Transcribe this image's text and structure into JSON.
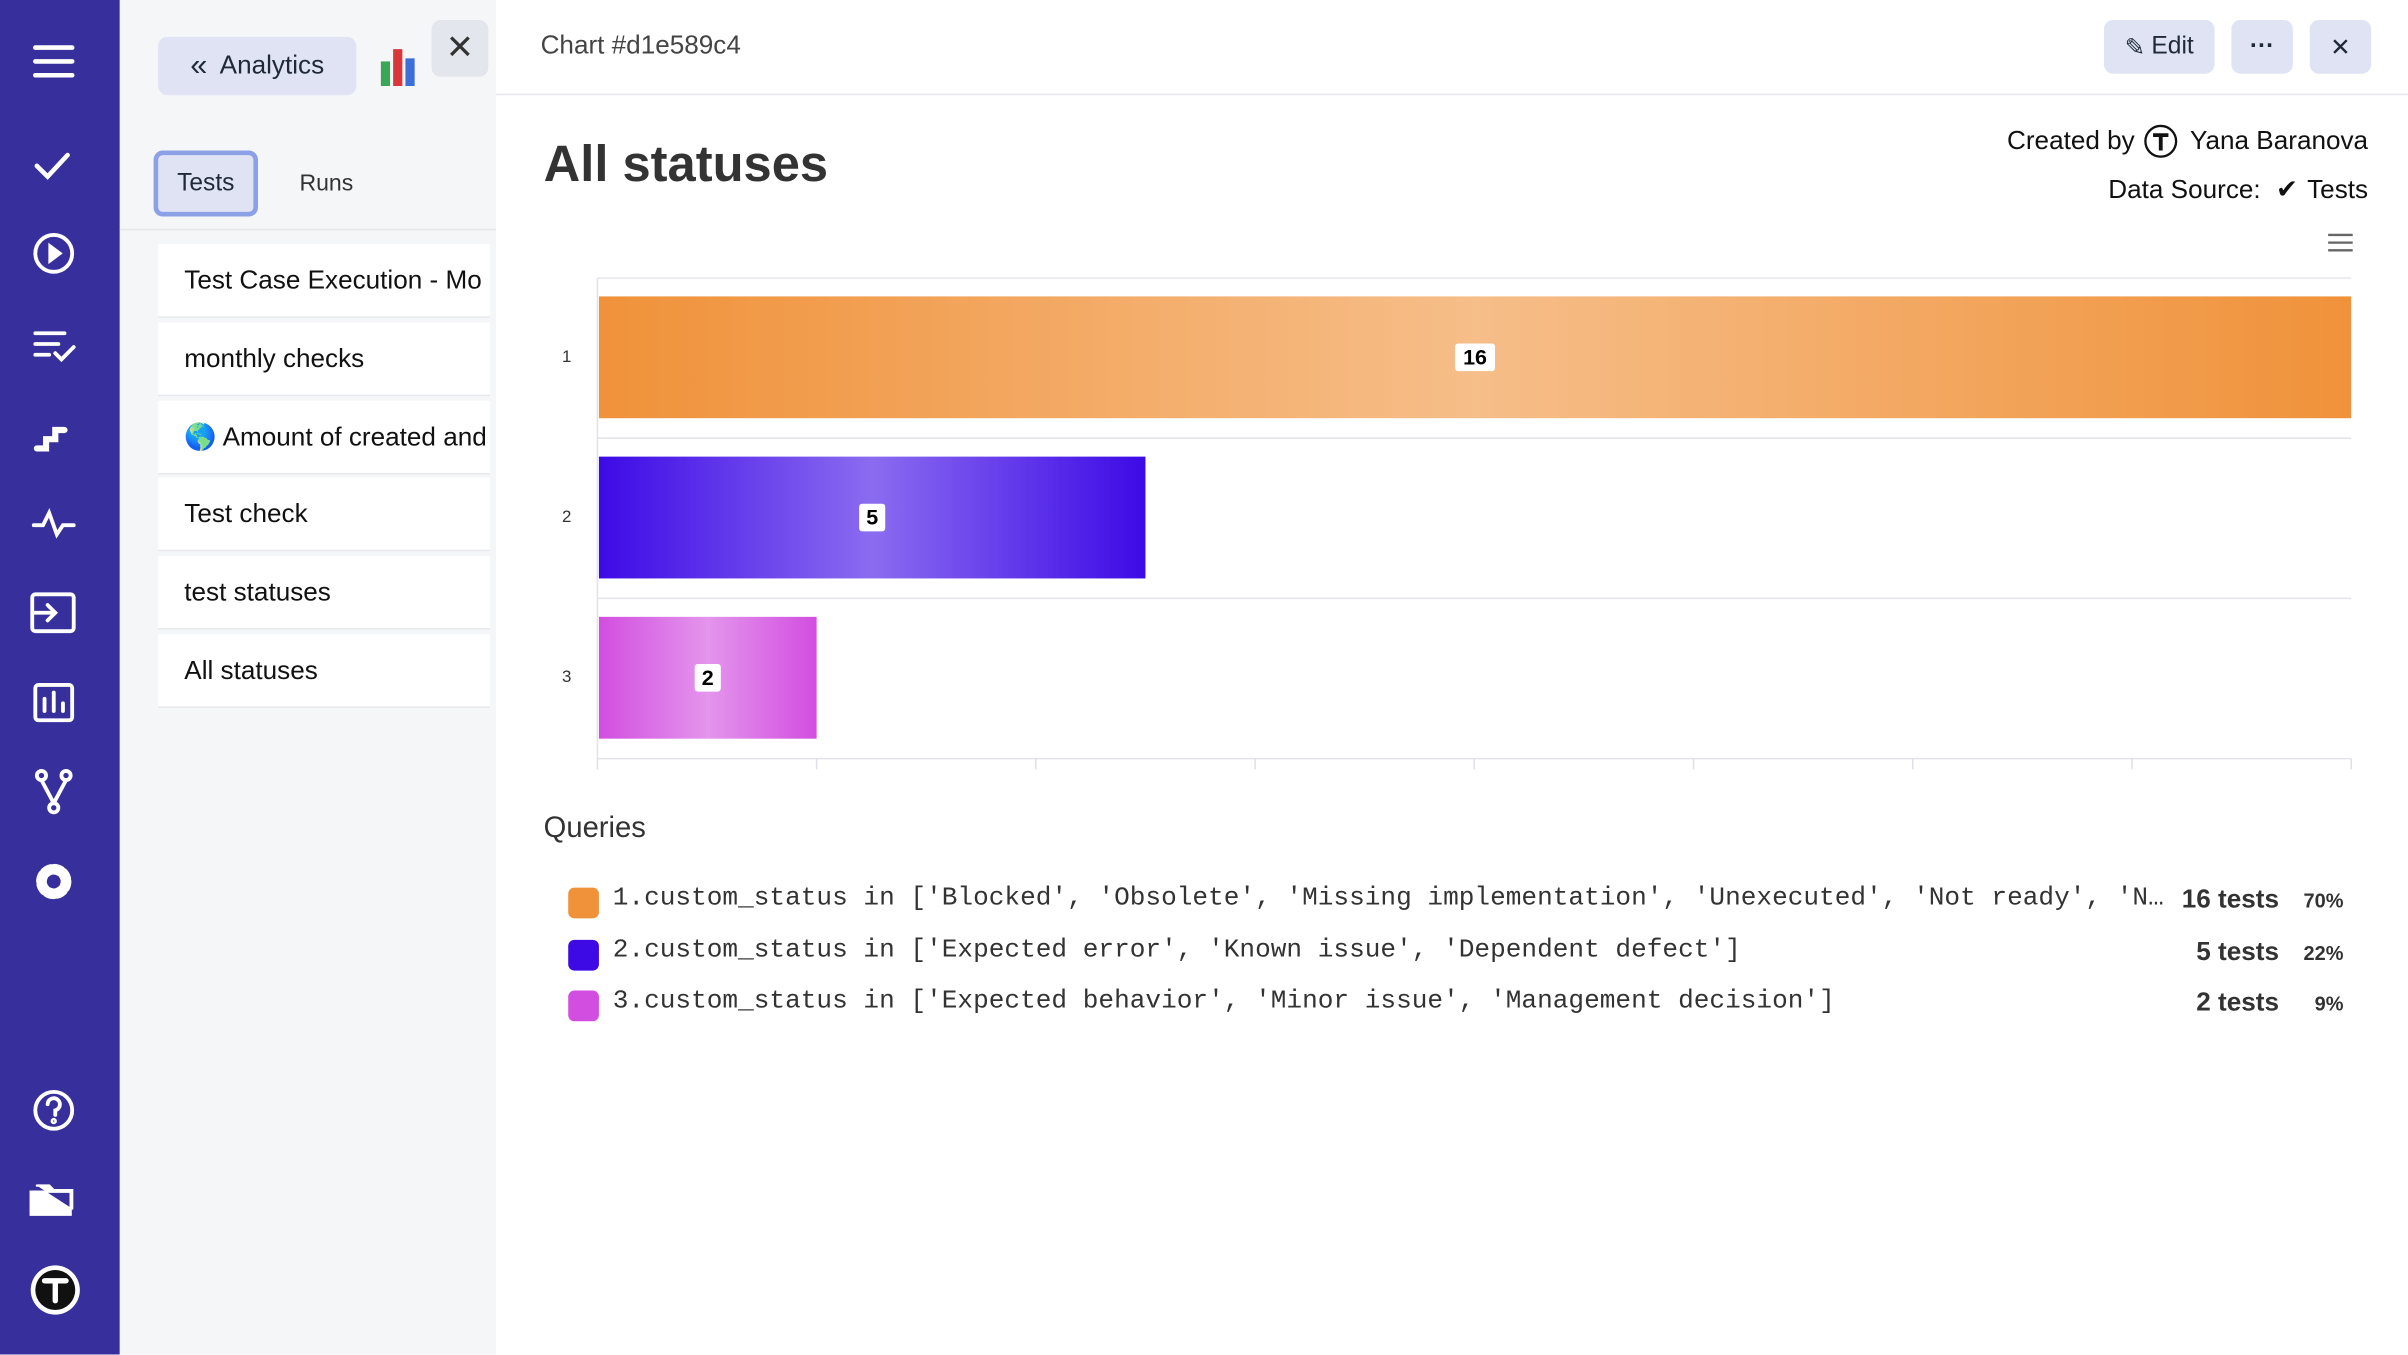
{
  "sidebar": {
    "back_button": "Analytics",
    "tabs": [
      "Tests",
      "Runs"
    ],
    "items": [
      "Test Case Execution - Mo",
      "monthly checks",
      "🌎 Amount of created and",
      "Test check",
      "test statuses",
      "All statuses"
    ]
  },
  "header": {
    "title": "Chart #d1e589c4",
    "edit": "Edit"
  },
  "meta": {
    "created_by_label": "Created by",
    "author": "Yana Baranova",
    "data_source_label": "Data Source:",
    "data_source": "Tests"
  },
  "chart_data": {
    "type": "bar",
    "orientation": "horizontal",
    "title": "All statuses",
    "categories": [
      "1",
      "2",
      "3"
    ],
    "values": [
      16,
      5,
      2
    ],
    "colors": [
      "#f0923a",
      "#3d0ae6",
      "#d24ee0"
    ],
    "xlim": [
      0,
      16
    ],
    "xticks": [
      0,
      2,
      4,
      6,
      8,
      10,
      12,
      14,
      16
    ]
  },
  "queries": {
    "title": "Queries",
    "items": [
      {
        "text": "1.custom_status in ['Blocked', 'Obsolete', 'Missing implementation', 'Unexecuted', 'Not ready', 'N…",
        "count": "16 tests",
        "percent": "70%"
      },
      {
        "text": "2.custom_status in ['Expected error', 'Known issue', 'Dependent defect']",
        "count": "5 tests",
        "percent": "22%"
      },
      {
        "text": "3.custom_status in ['Expected behavior', 'Minor issue', 'Management decision']",
        "count": "2 tests",
        "percent": "9%"
      }
    ]
  }
}
